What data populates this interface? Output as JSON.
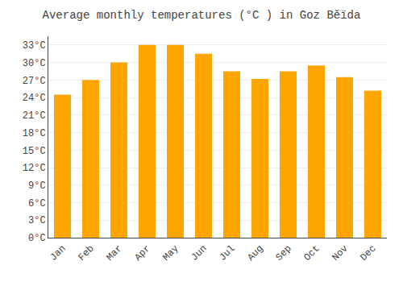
{
  "chart_data": {
    "type": "bar",
    "title": "Average monthly temperatures (°C ) in Goz Bĕïda",
    "categories": [
      "Jan",
      "Feb",
      "Mar",
      "Apr",
      "May",
      "Jun",
      "Jul",
      "Aug",
      "Sep",
      "Oct",
      "Nov",
      "Dec"
    ],
    "values": [
      24.5,
      27.0,
      30.0,
      33.0,
      33.0,
      31.5,
      28.5,
      27.2,
      28.5,
      29.5,
      27.5,
      25.2
    ],
    "color": "#FFA500",
    "ylim": [
      0,
      34.5
    ],
    "yticks": [
      {
        "value": 0,
        "label": "0°C"
      },
      {
        "value": 3,
        "label": "3°C"
      },
      {
        "value": 6,
        "label": "6°C"
      },
      {
        "value": 9,
        "label": "9°C"
      },
      {
        "value": 12,
        "label": "12°C"
      },
      {
        "value": 15,
        "label": "15°C"
      },
      {
        "value": 18,
        "label": "18°C"
      },
      {
        "value": 21,
        "label": "21°C"
      },
      {
        "value": 24,
        "label": "24°C"
      },
      {
        "value": 27,
        "label": "27°C"
      },
      {
        "value": 30,
        "label": "30°C"
      },
      {
        "value": 33,
        "label": "33°C"
      }
    ],
    "grid": true
  }
}
